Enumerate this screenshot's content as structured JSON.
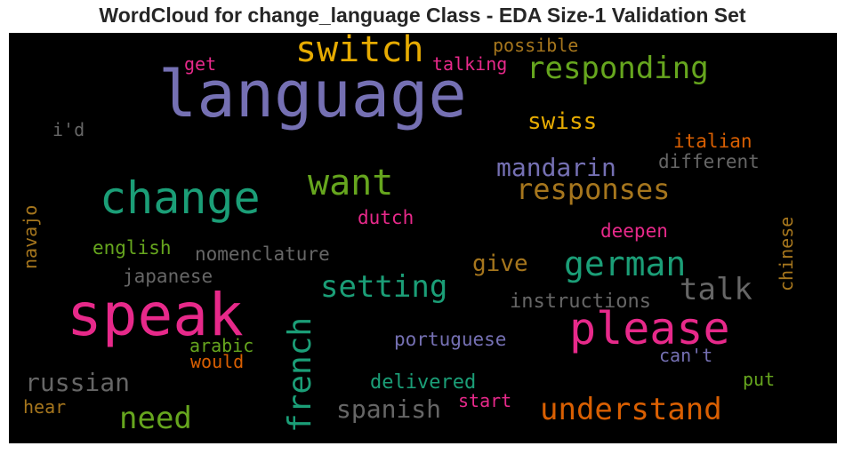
{
  "chart_data": {
    "type": "wordcloud",
    "title": "WordCloud for change_language Class - EDA Size-1 Validation Set",
    "background": "#000000",
    "colormap": "Dark2",
    "words": [
      {
        "text": "language",
        "color": "#7570b3"
      },
      {
        "text": "speak",
        "color": "#e7298a"
      },
      {
        "text": "change",
        "color": "#1b9e77"
      },
      {
        "text": "please",
        "color": "#e7298a"
      },
      {
        "text": "switch",
        "color": "#e6ab02"
      },
      {
        "text": "responding",
        "color": "#66a61e"
      },
      {
        "text": "understand",
        "color": "#d95f02"
      },
      {
        "text": "want",
        "color": "#66a61e"
      },
      {
        "text": "responses",
        "color": "#a6761d"
      },
      {
        "text": "german",
        "color": "#1b9e77"
      },
      {
        "text": "french",
        "color": "#1b9e77"
      },
      {
        "text": "setting",
        "color": "#1b9e77"
      },
      {
        "text": "talk",
        "color": "#666666"
      },
      {
        "text": "need",
        "color": "#66a61e"
      },
      {
        "text": "russian",
        "color": "#666666"
      },
      {
        "text": "spanish",
        "color": "#666666"
      },
      {
        "text": "mandarin",
        "color": "#7570b3"
      },
      {
        "text": "swiss",
        "color": "#e6ab02"
      },
      {
        "text": "give",
        "color": "#a6761d"
      },
      {
        "text": "instructions",
        "color": "#666666"
      },
      {
        "text": "nomenclature",
        "color": "#666666"
      },
      {
        "text": "japanese",
        "color": "#666666"
      },
      {
        "text": "english",
        "color": "#66a61e"
      },
      {
        "text": "portuguese",
        "color": "#7570b3"
      },
      {
        "text": "delivered",
        "color": "#1b9e77"
      },
      {
        "text": "different",
        "color": "#666666"
      },
      {
        "text": "italian",
        "color": "#d95f02"
      },
      {
        "text": "dutch",
        "color": "#e7298a"
      },
      {
        "text": "deepen",
        "color": "#e7298a"
      },
      {
        "text": "chinese",
        "color": "#a6761d"
      },
      {
        "text": "navajo",
        "color": "#a6761d"
      },
      {
        "text": "talking",
        "color": "#e7298a"
      },
      {
        "text": "possible",
        "color": "#a6761d"
      },
      {
        "text": "get",
        "color": "#e7298a"
      },
      {
        "text": "i'd",
        "color": "#666666"
      },
      {
        "text": "arabic",
        "color": "#66a61e"
      },
      {
        "text": "would",
        "color": "#d95f02"
      },
      {
        "text": "can't",
        "color": "#7570b3"
      },
      {
        "text": "put",
        "color": "#66a61e"
      },
      {
        "text": "start",
        "color": "#e7298a"
      },
      {
        "text": "hear",
        "color": "#a6761d"
      }
    ]
  }
}
